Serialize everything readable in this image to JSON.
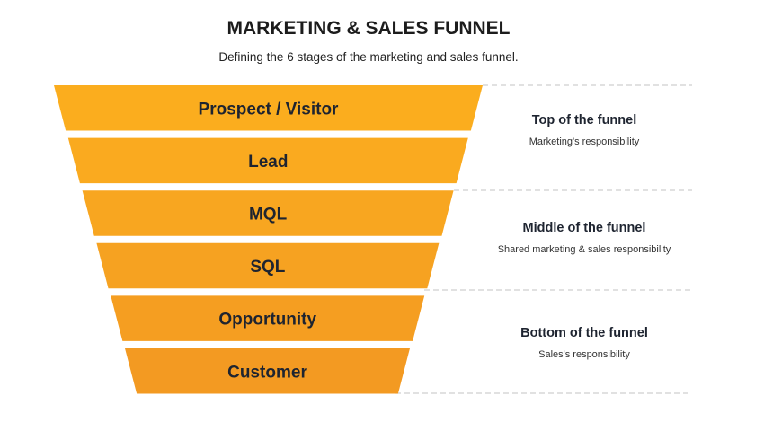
{
  "title": "MARKETING & SALES FUNNEL",
  "subtitle": "Defining the 6 stages of the marketing and sales funnel.",
  "stages": [
    {
      "label": "Prospect / Visitor",
      "color": "#FBAD1E"
    },
    {
      "label": "Lead",
      "color": "#FAAA1F"
    },
    {
      "label": "MQL",
      "color": "#F8A620"
    },
    {
      "label": "SQL",
      "color": "#F6A221"
    },
    {
      "label": "Opportunity",
      "color": "#F59E21"
    },
    {
      "label": "Customer",
      "color": "#F39A22"
    }
  ],
  "groups": [
    {
      "heading": "Top of the funnel",
      "description": "Marketing's responsibility"
    },
    {
      "heading": "Middle of the funnel",
      "description": "Shared marketing & sales responsibility"
    },
    {
      "heading": "Bottom of the funnel",
      "description": "Sales's responsibility"
    }
  ]
}
